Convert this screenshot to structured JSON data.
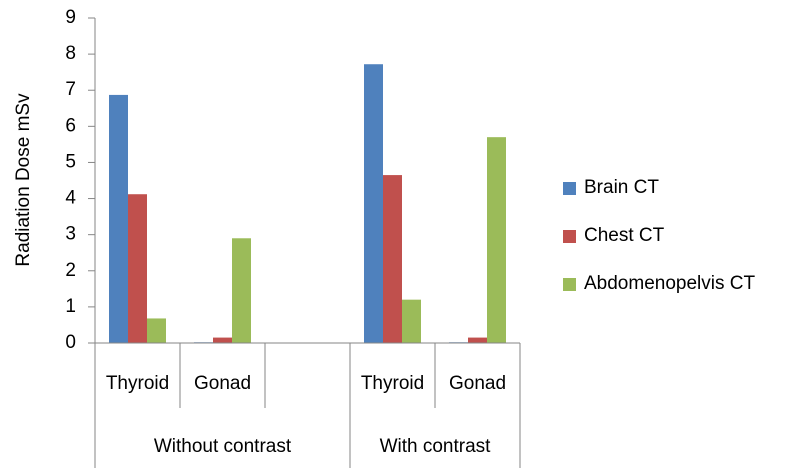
{
  "chart_data": {
    "type": "bar",
    "y_label": "Radiation Dose mSv",
    "categories": [
      "Thyroid",
      "Gonad",
      null,
      "Thyroid",
      "Gonad"
    ],
    "groups": [
      {
        "name": "Without contrast",
        "count": 3
      },
      {
        "name": "With contrast",
        "count": 2
      }
    ],
    "series": [
      {
        "name": "Brain CT",
        "color": "#4f81bd",
        "values": [
          6.87,
          0.02,
          null,
          7.72,
          0.02
        ]
      },
      {
        "name": "Chest CT",
        "color": "#c0504d",
        "values": [
          4.12,
          0.15,
          null,
          4.65,
          0.15
        ]
      },
      {
        "name": "Abdomenopelvis CT",
        "color": "#9bbb59",
        "values": [
          0.68,
          2.9,
          null,
          1.2,
          5.7
        ]
      }
    ],
    "ylim": [
      0,
      9
    ],
    "yticks": [
      0,
      1,
      2,
      3,
      4,
      5,
      6,
      7,
      8,
      9
    ],
    "grid": false,
    "legend": "right"
  }
}
